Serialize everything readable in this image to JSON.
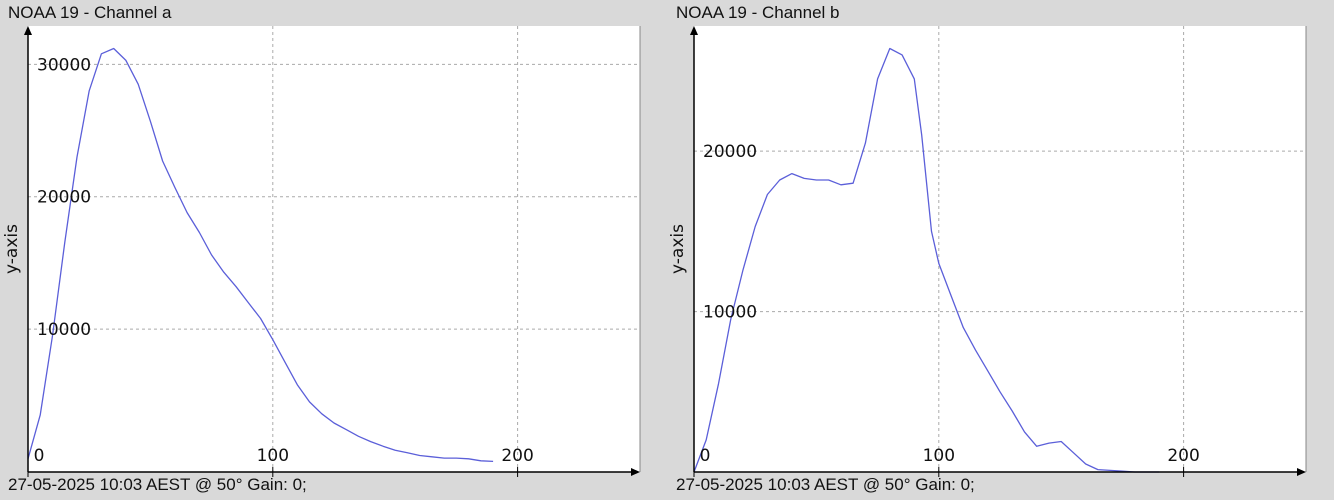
{
  "colors": {
    "background": "#d9d9d9",
    "plot_background": "#ffffff",
    "series": "#5b5fd9",
    "grid": "#aaaaaa",
    "axis": "#000000"
  },
  "chart_data": [
    {
      "type": "line",
      "title": "NOAA 19 - Channel a",
      "footer": "27-05-2025 10:03 AEST @ 50° Gain: 0;",
      "xlabel": "",
      "ylabel": "y-axis",
      "xlim": [
        0,
        250
      ],
      "ylim": [
        -800,
        32900
      ],
      "xticks": [
        0,
        100,
        200
      ],
      "xtick_labels": [
        "0",
        "100",
        "200"
      ],
      "yticks": [
        10000,
        20000,
        30000
      ],
      "ytick_labels": [
        "10000",
        "20000",
        "30000"
      ],
      "grid": true,
      "series": [
        {
          "x": [
            0,
            5,
            10,
            15,
            20,
            25,
            30,
            35,
            40,
            45,
            50,
            55,
            60,
            65,
            70,
            75,
            80,
            85,
            90,
            95,
            100,
            105,
            110,
            115,
            120,
            125,
            130,
            135,
            140,
            145,
            150,
            155,
            160,
            165,
            170,
            175,
            180,
            185,
            190
          ],
          "y": [
            200,
            3500,
            9500,
            16500,
            23000,
            28000,
            30800,
            31200,
            30300,
            28500,
            25700,
            22700,
            20700,
            18800,
            17300,
            15600,
            14300,
            13200,
            12000,
            10800,
            9200,
            7500,
            5800,
            4500,
            3600,
            2900,
            2400,
            1900,
            1500,
            1150,
            850,
            650,
            450,
            350,
            250,
            250,
            200,
            50,
            0
          ]
        }
      ]
    },
    {
      "type": "line",
      "title": "NOAA 19 - Channel b",
      "footer": "27-05-2025 10:03 AEST @ 50° Gain: 0;",
      "xlabel": "",
      "ylabel": "y-axis",
      "xlim": [
        0,
        250
      ],
      "ylim": [
        0,
        27800
      ],
      "xticks": [
        0,
        100,
        200
      ],
      "xtick_labels": [
        "0",
        "100",
        "200"
      ],
      "yticks": [
        10000,
        20000
      ],
      "ytick_labels": [
        "10000",
        "20000"
      ],
      "grid": true,
      "series": [
        {
          "x": [
            0,
            5,
            10,
            15,
            20,
            25,
            30,
            35,
            40,
            45,
            50,
            55,
            60,
            65,
            70,
            75,
            80,
            85,
            90,
            93,
            97,
            100,
            105,
            110,
            115,
            120,
            125,
            130,
            135,
            140,
            145,
            150,
            155,
            160,
            165,
            170,
            175,
            180,
            185,
            190
          ],
          "y": [
            0,
            2000,
            5500,
            9500,
            12600,
            15300,
            17300,
            18200,
            18600,
            18300,
            18200,
            18200,
            17900,
            18000,
            20500,
            24500,
            26400,
            26000,
            24500,
            21000,
            15000,
            13000,
            11000,
            9000,
            7600,
            6300,
            5000,
            3800,
            2500,
            1600,
            1800,
            1900,
            1200,
            500,
            150,
            100,
            50,
            0,
            0,
            0
          ]
        }
      ]
    }
  ]
}
